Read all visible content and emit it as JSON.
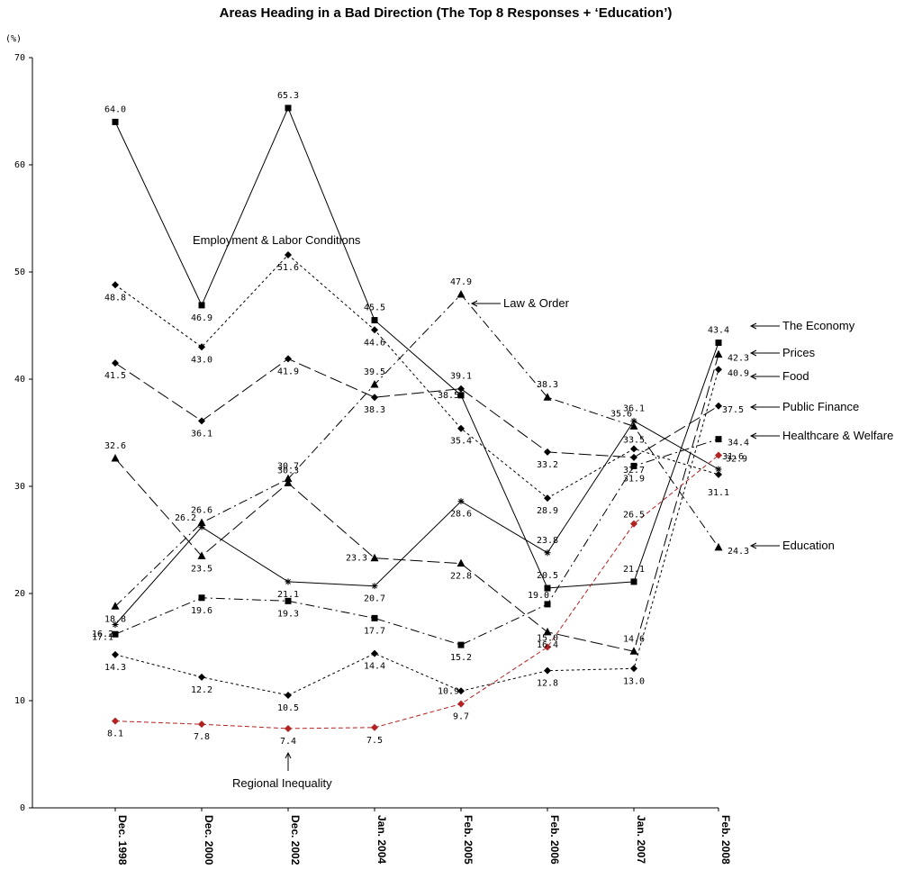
{
  "chart_data": {
    "type": "line",
    "title": "Areas Heading in a Bad Direction (The Top 8 Responses + ‘Education’)",
    "y_unit": "(%)",
    "ylim": [
      0,
      70
    ],
    "y_ticks": [
      "0",
      "10",
      "20",
      "30",
      "40",
      "50",
      "60",
      "70"
    ],
    "categories": [
      "Dec. 1998",
      "Dec. 2000",
      "Dec. 2002",
      "Jan. 2004",
      "Feb. 2005",
      "Feb. 2006",
      "Jan. 2007",
      "Feb. 2008"
    ],
    "grid": false,
    "series": [
      {
        "name": "Employment & Labor Conditions",
        "marker": "square",
        "dash": "solid",
        "color": "#000000",
        "values": [
          64.0,
          46.9,
          65.3,
          45.5,
          38.5,
          20.5,
          21.1,
          43.4
        ],
        "labels": [
          "64.0",
          "46.9",
          "65.3",
          "45.5",
          "38.5",
          "20.5",
          "21.1",
          "43.4"
        ]
      },
      {
        "name": "",
        "marker": "diamond",
        "dash": "short",
        "color": "#000000",
        "values": [
          48.8,
          43.0,
          51.6,
          44.6,
          35.4,
          28.9,
          33.5,
          31.1
        ],
        "labels": [
          "48.8",
          "43.0",
          "51.6",
          "44.6",
          "35.4",
          "28.9",
          "33.5",
          "31.1"
        ]
      },
      {
        "name": "",
        "marker": "diamond",
        "dash": "long",
        "color": "#000000",
        "values": [
          41.5,
          36.1,
          41.9,
          38.3,
          39.1,
          33.2,
          32.7,
          37.5
        ],
        "labels": [
          "41.5",
          "36.1",
          "41.9",
          "38.3",
          "39.1",
          "33.2",
          "32.7",
          "37.5"
        ]
      },
      {
        "name": "Law & Order",
        "marker": "triangle",
        "dash": "dashdot",
        "color": "#000000",
        "values": [
          18.8,
          26.6,
          30.7,
          39.5,
          47.9,
          38.3,
          35.6,
          24.3
        ],
        "labels": [
          "18.8",
          "26.6",
          "30.7",
          "39.5",
          "47.9",
          "38.3",
          "35.6",
          "24.3"
        ]
      },
      {
        "name": "",
        "marker": "triangle",
        "dash": "long",
        "color": "#000000",
        "values": [
          32.6,
          23.5,
          30.3,
          23.3,
          22.8,
          16.4,
          14.6,
          42.3
        ],
        "labels": [
          "32.6",
          "23.5",
          "30.3",
          "23.3",
          "22.8",
          "16.4",
          "14.6",
          "42.3"
        ]
      },
      {
        "name": "",
        "marker": "star",
        "dash": "solid",
        "color": "#000000",
        "values": [
          17.1,
          26.2,
          21.1,
          20.7,
          28.6,
          23.8,
          36.1,
          31.6
        ],
        "labels": [
          "17.1",
          "26.2",
          "21.1",
          "20.7",
          "28.6",
          "23.8",
          "36.1",
          "31.6"
        ]
      },
      {
        "name": "",
        "marker": "square",
        "dash": "dashdot",
        "color": "#000000",
        "values": [
          16.2,
          19.6,
          19.3,
          17.7,
          15.2,
          19.0,
          31.9,
          34.4
        ],
        "labels": [
          "16.2",
          "19.6",
          "19.3",
          "17.7",
          "15.2",
          "19.0",
          "31.9",
          "34.4"
        ]
      },
      {
        "name": "",
        "marker": "diamond",
        "dash": "short",
        "color": "#000000",
        "values": [
          14.3,
          12.2,
          10.5,
          14.4,
          10.9,
          12.8,
          13.0,
          40.9
        ],
        "labels": [
          "14.3",
          "12.2",
          "10.5",
          "14.4",
          "10.9",
          "12.8",
          "13.0",
          "40.9"
        ]
      },
      {
        "name": "Regional Inequality",
        "marker": "diamond",
        "dash": "red",
        "color": "#b22222",
        "values": [
          8.1,
          7.8,
          7.4,
          7.5,
          9.7,
          15.0,
          26.5,
          32.9
        ],
        "labels": [
          "8.1",
          "7.8",
          "7.4",
          "7.5",
          "9.7",
          "15.0",
          "26.5",
          "32.9"
        ]
      }
    ],
    "end_labels": [
      "The Economy",
      "Prices",
      "Food",
      "Public Finance",
      "Healthcare & Welfare",
      "Education"
    ]
  }
}
